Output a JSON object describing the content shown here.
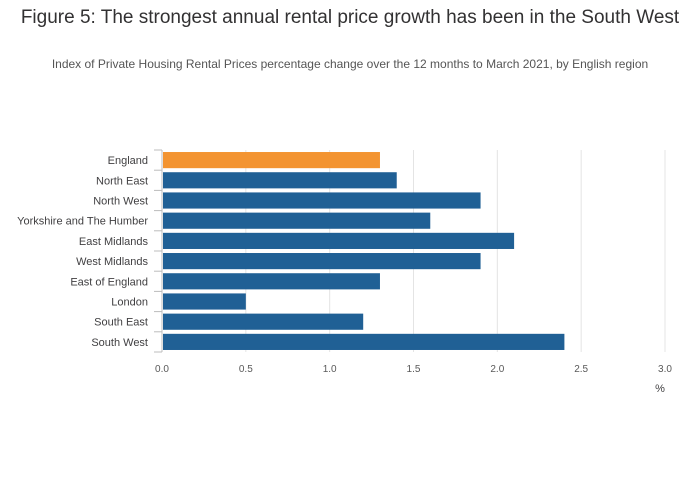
{
  "chart": {
    "title": "Figure 5: The strongest annual rental price growth has been in the South West",
    "subtitle": "Index of Private Housing Rental Prices percentage change over the 12 months to March 2021, by English region"
  },
  "colors": {
    "highlight": "#f39431",
    "bar": "#206095",
    "grid": "#e4e4e4",
    "axis_line": "#bcbcbc"
  },
  "chart_data": {
    "type": "bar",
    "orientation": "horizontal",
    "title": "Figure 5: The strongest annual rental price growth has been in the South West",
    "subtitle": "Index of Private Housing Rental Prices percentage change over the 12 months to March 2021, by English region",
    "xlabel": "%",
    "ylabel": "",
    "categories": [
      "England",
      "North East",
      "North West",
      "Yorkshire and The Humber",
      "East Midlands",
      "West Midlands",
      "East of England",
      "London",
      "South East",
      "South West"
    ],
    "values": [
      1.3,
      1.4,
      1.9,
      1.6,
      2.1,
      1.9,
      1.3,
      0.5,
      1.2,
      2.4
    ],
    "highlight_category": "England",
    "xlim": [
      0,
      3.0
    ],
    "xticks": [
      "0.0",
      "0.5",
      "1.0",
      "1.5",
      "2.0",
      "2.5",
      "3.0"
    ],
    "grid": true
  }
}
